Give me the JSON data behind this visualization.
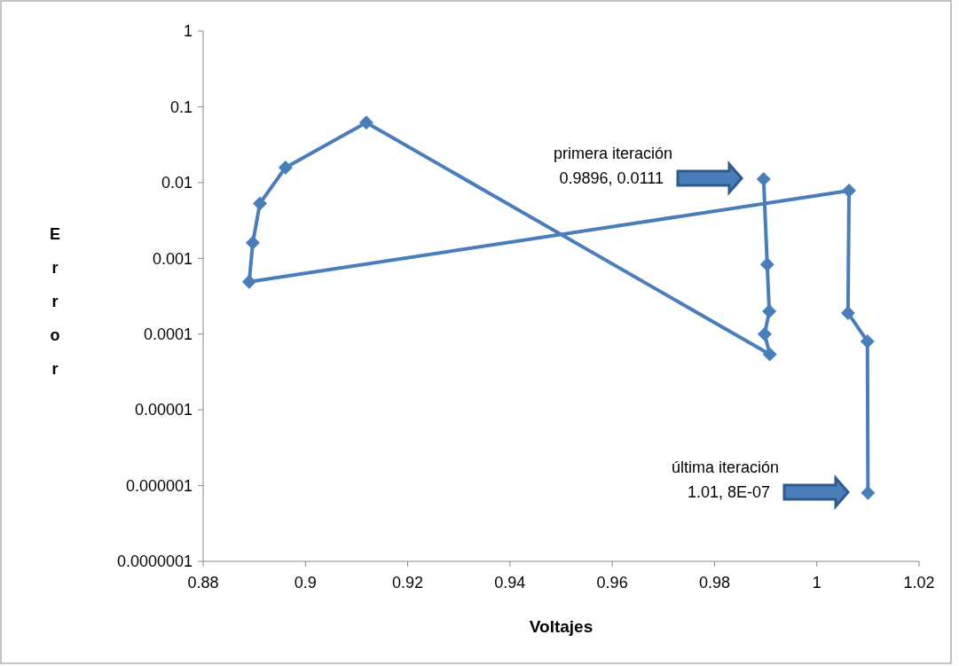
{
  "chart_data": {
    "type": "line",
    "xlabel": "Voltajes",
    "ylabel": "Error",
    "log": "y",
    "grid": false,
    "marker": "diamond",
    "line_style": "solid",
    "xlim": [
      0.88,
      1.02
    ],
    "xticks": [
      0.88,
      0.9,
      0.92,
      0.94,
      0.96,
      0.98,
      1,
      1.02
    ],
    "ylim": [
      1e-07,
      1
    ],
    "yticks": [
      {
        "value": 1e-07,
        "label": "0.0000001"
      },
      {
        "value": 1e-06,
        "label": "0.000001"
      },
      {
        "value": 1e-05,
        "label": "0.00001"
      },
      0.0001,
      0.001,
      0.01,
      0.1,
      1
    ],
    "series": [
      {
        "color": "#4a7ebb",
        "x": [
          0.9896,
          0.9903,
          0.9907,
          0.9898,
          0.9908,
          0.9119,
          0.8961,
          0.8911,
          0.8897,
          0.889,
          1.0063,
          1.0061,
          1.0099,
          1.01
        ],
        "values": [
          0.0111,
          0.00083,
          0.0002,
          0.0001,
          5.4e-05,
          0.062,
          0.0158,
          0.0053,
          0.0016,
          0.00049,
          0.0078,
          0.00019,
          8e-05,
          8e-07
        ]
      }
    ],
    "annotations": [
      "primera iteración\n0.9896, 0.0111",
      "última iteración\n1.01, 8E-07"
    ]
  }
}
